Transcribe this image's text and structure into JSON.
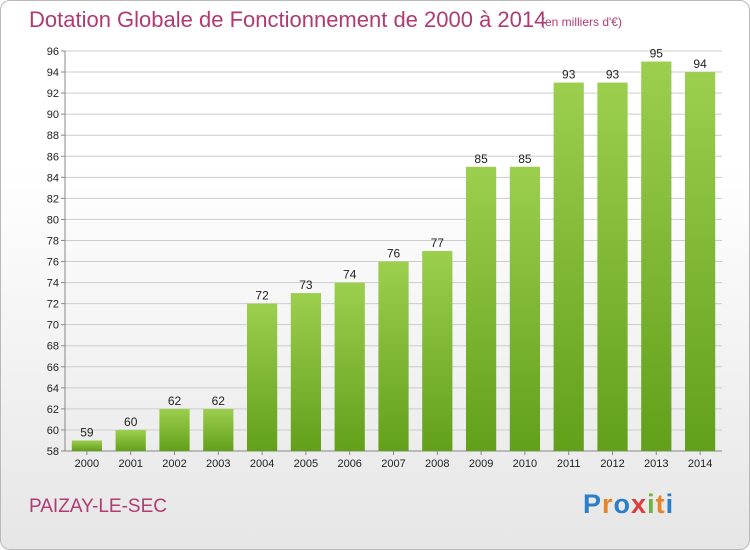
{
  "header": {
    "title": "Dotation Globale de Fonctionnement de 2000 à 2014",
    "subtitle": "(en milliers d'€)"
  },
  "footer": {
    "place": "PAIZAY-LE-SEC",
    "brand": "Proxiti",
    "brand_letters": [
      {
        "ch": "P",
        "color": "#2b7fc9"
      },
      {
        "ch": "r",
        "color": "#e8832a"
      },
      {
        "ch": "o",
        "color": "#2b7fc9"
      },
      {
        "ch": "x",
        "color": "#e03a3a"
      },
      {
        "ch": "i",
        "color": "#6cb33f"
      },
      {
        "ch": "t",
        "color": "#e8832a"
      },
      {
        "ch": "i",
        "color": "#2b7fc9"
      }
    ]
  },
  "colors": {
    "text_accent": "#b23a72",
    "bar_top": "#9ccf4e",
    "bar_bottom": "#62a01a",
    "grid": "#cccccc"
  },
  "chart_data": {
    "type": "bar",
    "title": "Dotation Globale de Fonctionnement de 2000 à 2014",
    "subtitle": "(en milliers d'€)",
    "categories": [
      "2000",
      "2001",
      "2002",
      "2003",
      "2004",
      "2005",
      "2006",
      "2007",
      "2008",
      "2009",
      "2010",
      "2011",
      "2012",
      "2013",
      "2014"
    ],
    "values": [
      59,
      60,
      62,
      62,
      72,
      73,
      74,
      76,
      77,
      85,
      85,
      93,
      93,
      95,
      94
    ],
    "ylim": [
      58,
      96
    ],
    "yticks": [
      58,
      60,
      62,
      64,
      66,
      68,
      70,
      72,
      74,
      76,
      78,
      80,
      82,
      84,
      86,
      88,
      90,
      92,
      94,
      96
    ],
    "grid": true,
    "legend": "none"
  }
}
